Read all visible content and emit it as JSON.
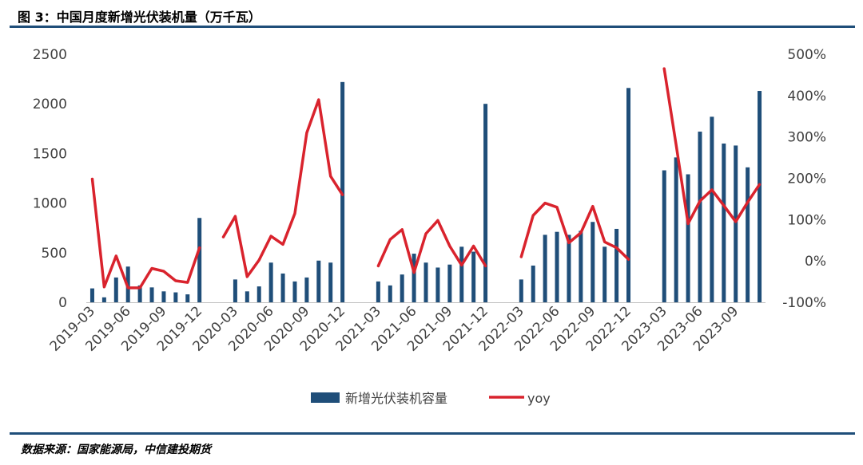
{
  "header": {
    "title": "图 3：中国月度新增光伏装机量（万千瓦）"
  },
  "footer": {
    "source": "数据来源：国家能源局，中信建投期货"
  },
  "colors": {
    "bar": "#1f4e79",
    "line": "#d9232d",
    "rule": "#1f4e79",
    "axis": "#bfbfbf",
    "text": "#404040"
  },
  "chart_data": {
    "type": "bar",
    "title": "",
    "xlabel": "",
    "ylabel": "",
    "categories": [
      "2019-03",
      "2019-04",
      "2019-05",
      "2019-06",
      "2019-07",
      "2019-08",
      "2019-09",
      "2019-10",
      "2019-11",
      "2019-12",
      "2020-01",
      "2020-02",
      "2020-03",
      "2020-04",
      "2020-05",
      "2020-06",
      "2020-07",
      "2020-08",
      "2020-09",
      "2020-10",
      "2020-11",
      "2020-12",
      "2021-01",
      "2021-02",
      "2021-03",
      "2021-04",
      "2021-05",
      "2021-06",
      "2021-07",
      "2021-08",
      "2021-09",
      "2021-10",
      "2021-11",
      "2021-12",
      "2022-01",
      "2022-02",
      "2022-03",
      "2022-04",
      "2022-05",
      "2022-06",
      "2022-07",
      "2022-08",
      "2022-09",
      "2022-10",
      "2022-11",
      "2022-12",
      "2023-01",
      "2023-02",
      "2023-03",
      "2023-04",
      "2023-05",
      "2023-06",
      "2023-07",
      "2023-08",
      "2023-09",
      "2023-10",
      "2023-11"
    ],
    "tick_labels": [
      "2019-03",
      "2019-06",
      "2019-09",
      "2019-12",
      "2020-03",
      "2020-06",
      "2020-09",
      "2020-12",
      "2021-03",
      "2021-06",
      "2021-09",
      "2021-12",
      "2022-03",
      "2022-06",
      "2022-09",
      "2022-12",
      "2023-03",
      "2023-06",
      "2023-09"
    ],
    "series": [
      {
        "name": "新增光伏装机容量",
        "type": "bar",
        "axis": "left",
        "values": [
          140,
          50,
          250,
          360,
          170,
          150,
          110,
          100,
          80,
          850,
          null,
          null,
          230,
          110,
          160,
          400,
          290,
          210,
          250,
          420,
          400,
          2220,
          null,
          null,
          210,
          170,
          280,
          490,
          400,
          350,
          380,
          560,
          510,
          2000,
          null,
          null,
          230,
          370,
          680,
          710,
          680,
          720,
          810,
          560,
          740,
          2160,
          null,
          null,
          1330,
          1460,
          1290,
          1720,
          1870,
          1600,
          1580,
          1360,
          2130
        ]
      },
      {
        "name": "yoy",
        "type": "line",
        "axis": "right",
        "values": [
          198,
          -63,
          12,
          -65,
          -65,
          -18,
          -25,
          -48,
          -52,
          32,
          null,
          58,
          108,
          -38,
          2,
          60,
          40,
          115,
          310,
          390,
          205,
          160,
          null,
          null,
          -12,
          52,
          76,
          -28,
          66,
          98,
          36,
          -10,
          36,
          -12,
          null,
          null,
          10,
          110,
          140,
          130,
          44,
          68,
          132,
          46,
          32,
          4,
          null,
          null,
          465,
          280,
          90,
          145,
          172,
          134,
          95,
          142,
          185
        ]
      }
    ],
    "y_left": {
      "lim": [
        0,
        2500
      ],
      "ticks": [
        0,
        500,
        1000,
        1500,
        2000,
        2500
      ],
      "tick_labels": [
        "0",
        "500",
        "1000",
        "1500",
        "2000",
        "2500"
      ]
    },
    "y_right": {
      "lim": [
        -100,
        500
      ],
      "ticks": [
        -100,
        0,
        100,
        200,
        300,
        400,
        500
      ],
      "tick_labels": [
        "-100%",
        "0%",
        "100%",
        "200%",
        "300%",
        "400%",
        "500%"
      ]
    },
    "grid": false,
    "legend": {
      "placement": "bottom-center",
      "entries": [
        "新增光伏装机容量",
        "yoy"
      ]
    }
  }
}
